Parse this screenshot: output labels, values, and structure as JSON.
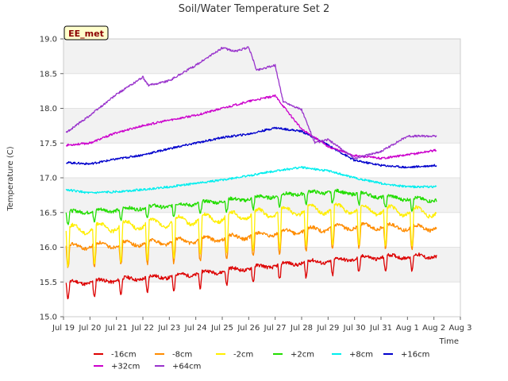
{
  "chart_data": {
    "type": "line",
    "title": "Soil/Water Temperature Set 2",
    "xlabel": "Time",
    "ylabel": "Temperature (C)",
    "ylim": [
      15.0,
      19.0
    ],
    "xlim": [
      0,
      15
    ],
    "yticks": [
      "15.0",
      "15.5",
      "16.0",
      "16.5",
      "17.0",
      "17.5",
      "18.0",
      "18.5",
      "19.0"
    ],
    "xticks": [
      "Jul 19",
      "Jul 20",
      "Jul 21",
      "Jul 22",
      "Jul 23",
      "Jul 24",
      "Jul 25",
      "Jul 26",
      "Jul 27",
      "Jul 28",
      "Jul 29",
      "Jul 30",
      "Jul 31",
      "Aug 1",
      "Aug 2",
      "Aug 3"
    ],
    "grid": "horizontal-bands",
    "legend_position": "bottom",
    "site_badge": "EE_met",
    "series": [
      {
        "name": "-16cm",
        "color": "#dd0000",
        "daily_cycle": true,
        "x": [
          0.1,
          1,
          2,
          3,
          4,
          5,
          6,
          7,
          8,
          9,
          10,
          11,
          12,
          13,
          14.1
        ],
        "values": [
          15.48,
          15.5,
          15.53,
          15.56,
          15.58,
          15.62,
          15.66,
          15.7,
          15.74,
          15.78,
          15.8,
          15.84,
          15.86,
          15.87,
          15.87
        ]
      },
      {
        "name": "-8cm",
        "color": "#ff8c00",
        "daily_cycle": true,
        "x": [
          0.1,
          1,
          2,
          3,
          4,
          5,
          6,
          7,
          8,
          9,
          10,
          11,
          12,
          13,
          14.1
        ],
        "values": [
          16.0,
          16.02,
          16.04,
          16.06,
          16.08,
          16.1,
          16.13,
          16.16,
          16.2,
          16.24,
          16.27,
          16.3,
          16.3,
          16.28,
          16.28
        ]
      },
      {
        "name": "-2cm",
        "color": "#ffee00",
        "daily_cycle": true,
        "x": [
          0.1,
          1,
          2,
          3,
          4,
          5,
          6,
          7,
          8,
          9,
          10,
          11,
          12,
          13,
          14.1
        ],
        "values": [
          16.25,
          16.27,
          16.3,
          16.33,
          16.36,
          16.4,
          16.43,
          16.47,
          16.5,
          16.53,
          16.55,
          16.55,
          16.53,
          16.52,
          16.5
        ]
      },
      {
        "name": "+2cm",
        "color": "#22dd00",
        "daily_cycle": true,
        "x": [
          0.1,
          1,
          2,
          3,
          4,
          5,
          6,
          7,
          8,
          9,
          10,
          11,
          12,
          13,
          14.1
        ],
        "values": [
          16.5,
          16.52,
          16.54,
          16.57,
          16.6,
          16.63,
          16.67,
          16.7,
          16.74,
          16.78,
          16.8,
          16.78,
          16.73,
          16.7,
          16.68
        ]
      },
      {
        "name": "+8cm",
        "color": "#00eeee",
        "daily_cycle": false,
        "x": [
          0.1,
          1,
          2,
          3,
          4,
          5,
          6,
          7,
          8,
          9,
          10,
          11,
          12,
          13,
          14.1
        ],
        "values": [
          16.83,
          16.78,
          16.8,
          16.83,
          16.87,
          16.92,
          16.97,
          17.03,
          17.1,
          17.15,
          17.1,
          17.0,
          16.92,
          16.87,
          16.87
        ]
      },
      {
        "name": "+16cm",
        "color": "#0000cc",
        "daily_cycle": false,
        "x": [
          0.1,
          1,
          2,
          3,
          4,
          5,
          6,
          7,
          8,
          9,
          10,
          11,
          12,
          13,
          14.1
        ],
        "values": [
          17.22,
          17.2,
          17.27,
          17.33,
          17.42,
          17.5,
          17.58,
          17.63,
          17.72,
          17.67,
          17.47,
          17.25,
          17.18,
          17.15,
          17.18
        ]
      },
      {
        "name": "+32cm",
        "color": "#cc00cc",
        "daily_cycle": false,
        "x": [
          0.1,
          1,
          2,
          3,
          4,
          5,
          6,
          7,
          8,
          9,
          9.5,
          10,
          11,
          12,
          13,
          14.1
        ],
        "values": [
          17.47,
          17.5,
          17.65,
          17.75,
          17.83,
          17.9,
          18.0,
          18.1,
          18.18,
          17.7,
          17.58,
          17.45,
          17.32,
          17.28,
          17.33,
          17.4
        ]
      },
      {
        "name": "+64cm",
        "color": "#9933cc",
        "daily_cycle": false,
        "x": [
          0.1,
          1,
          2,
          3,
          3.2,
          4,
          5,
          6,
          6.5,
          7,
          7.3,
          8,
          8.3,
          9,
          9.5,
          10,
          11,
          12,
          13,
          14.1
        ],
        "values": [
          17.65,
          17.9,
          18.2,
          18.45,
          18.33,
          18.4,
          18.62,
          18.87,
          18.82,
          18.88,
          18.55,
          18.62,
          18.1,
          17.98,
          17.5,
          17.55,
          17.28,
          17.38,
          17.6,
          17.6
        ]
      }
    ]
  }
}
